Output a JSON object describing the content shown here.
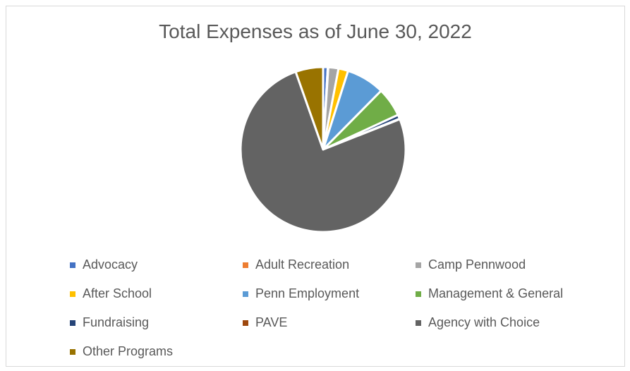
{
  "chart_data": {
    "type": "pie",
    "title": "Total Expenses as of June 30, 2022",
    "legend_position": "bottom",
    "slices": [
      {
        "label": "Advocacy",
        "value": 0.9,
        "color": "#4472c4"
      },
      {
        "label": "Adult Recreation",
        "value": 0.1,
        "color": "#ed7d31"
      },
      {
        "label": "Camp Pennwood",
        "value": 2.0,
        "color": "#a5a5a5"
      },
      {
        "label": "After School",
        "value": 1.9,
        "color": "#ffc000"
      },
      {
        "label": "Penn Employment",
        "value": 7.5,
        "color": "#5b9bd5"
      },
      {
        "label": "Management & General",
        "value": 5.7,
        "color": "#70ad47"
      },
      {
        "label": "Fundraising",
        "value": 0.8,
        "color": "#264478"
      },
      {
        "label": "PAVE",
        "value": 0.1,
        "color": "#9e480e"
      },
      {
        "label": "Agency with Choice",
        "value": 75.6,
        "color": "#636363"
      },
      {
        "label": "Other Programs",
        "value": 5.4,
        "color": "#997300"
      }
    ]
  }
}
